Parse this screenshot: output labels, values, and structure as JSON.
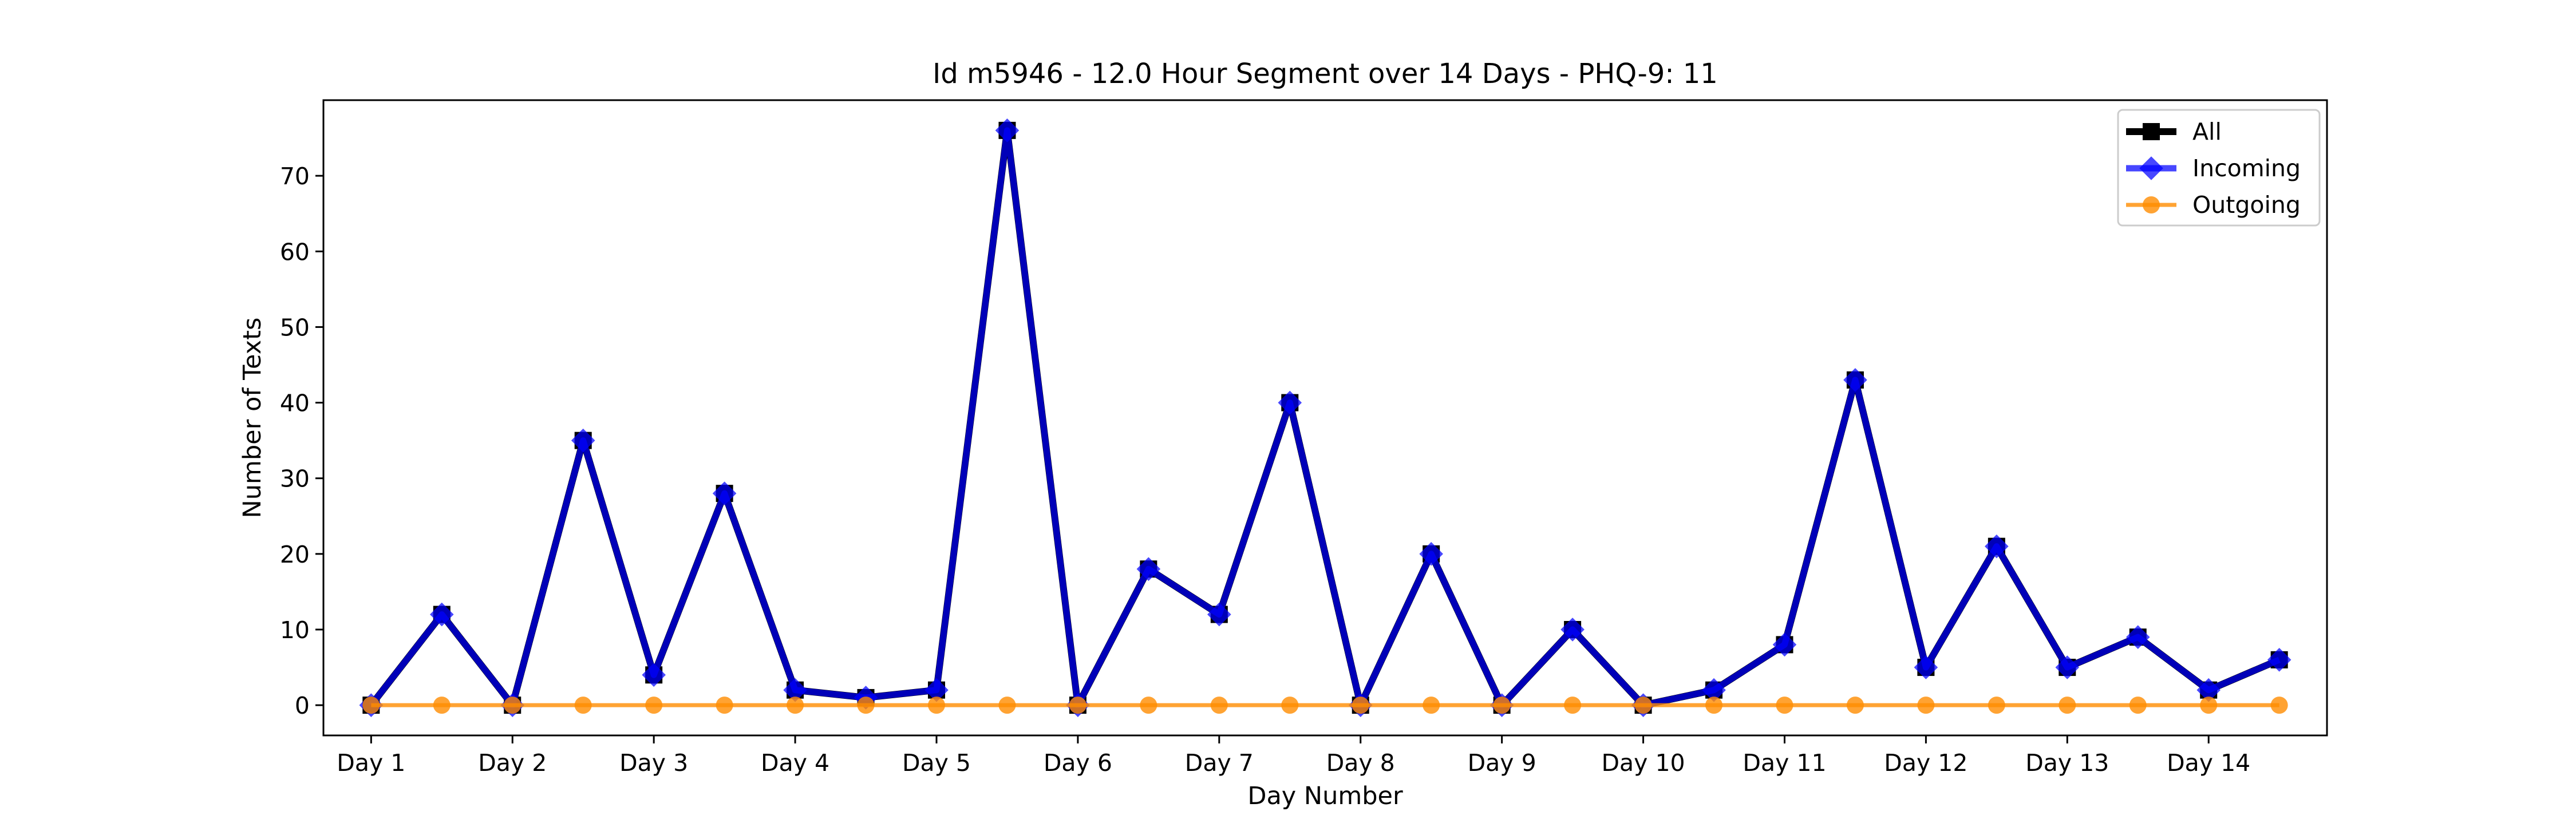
{
  "chart_data": {
    "type": "line",
    "title": "Id m5946 - 12.0 Hour Segment over 14 Days - PHQ-9: 11",
    "xlabel": "Day Number",
    "ylabel": "Number of Texts",
    "ylim": [
      -4,
      80
    ],
    "yticks": [
      0,
      10,
      20,
      30,
      40,
      50,
      60,
      70
    ],
    "x_tick_labels": [
      "Day 1",
      "Day 2",
      "Day 3",
      "Day 4",
      "Day 5",
      "Day 6",
      "Day 7",
      "Day 8",
      "Day 9",
      "Day 10",
      "Day 11",
      "Day 12",
      "Day 13",
      "Day 14"
    ],
    "grid": false,
    "legend_position": "top-right",
    "series": [
      {
        "name": "All",
        "color": "#000000",
        "marker": "square",
        "values": [
          0,
          12,
          0,
          35,
          4,
          28,
          2,
          1,
          2,
          76,
          0,
          18,
          12,
          40,
          0,
          20,
          0,
          10,
          0,
          2,
          8,
          43,
          5,
          21,
          5,
          9,
          2,
          6
        ]
      },
      {
        "name": "Incoming",
        "color": "#0000ff",
        "marker": "diamond",
        "values": [
          0,
          12,
          0,
          35,
          4,
          28,
          2,
          1,
          2,
          76,
          0,
          18,
          12,
          40,
          0,
          20,
          0,
          10,
          0,
          2,
          8,
          43,
          5,
          21,
          5,
          9,
          2,
          6
        ]
      },
      {
        "name": "Outgoing",
        "color": "#ff8c00",
        "marker": "circle",
        "values": [
          0,
          0,
          0,
          0,
          0,
          0,
          0,
          0,
          0,
          0,
          0,
          0,
          0,
          0,
          0,
          0,
          0,
          0,
          0,
          0,
          0,
          0,
          0,
          0,
          0,
          0,
          0,
          0
        ]
      }
    ]
  }
}
